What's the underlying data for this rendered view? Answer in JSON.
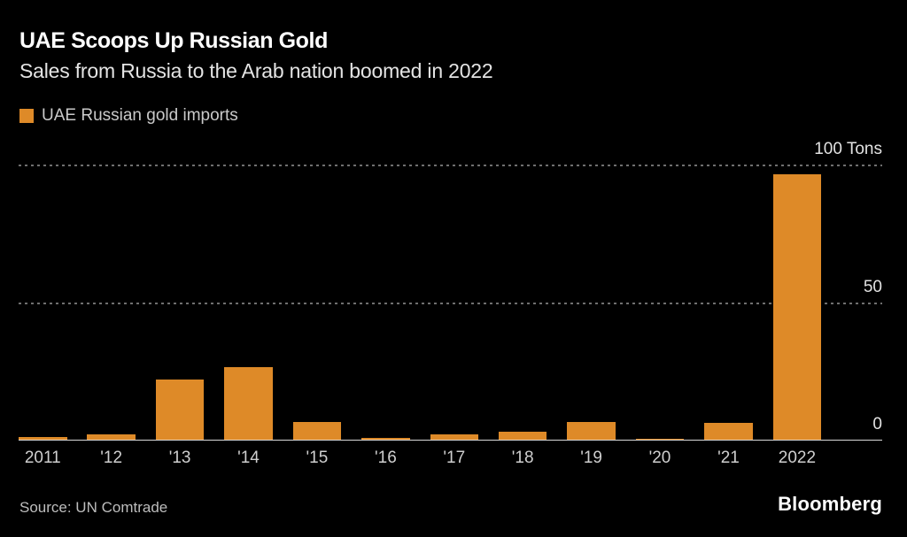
{
  "colors": {
    "background": "#000000",
    "bar": "#DE8A28",
    "title_text": "#FFFFFF",
    "subtitle_text": "#E4E4E4",
    "legend_text": "#C9C9C9",
    "axis_label_text": "#CFCFCF",
    "gridline": "#6F6F6F",
    "axis_line": "#D9D9D9",
    "source_text": "#BDBDBD",
    "brand_text": "#FFFFFF"
  },
  "header": {
    "title": "UAE Scoops Up Russian Gold",
    "subtitle": "Sales from Russia to the Arab nation boomed in 2022"
  },
  "legend": {
    "label": "UAE Russian gold imports",
    "swatch_color": "#DE8A28"
  },
  "chart_data": {
    "type": "bar",
    "title": "UAE Scoops Up Russian Gold",
    "subtitle": "Sales from Russia to the Arab nation boomed in 2022",
    "series_name": "UAE Russian gold imports",
    "categories": [
      "2011",
      "'12",
      "'13",
      "'14",
      "'15",
      "'16",
      "'17",
      "'18",
      "'19",
      "'20",
      "'21",
      "2022"
    ],
    "values": [
      1.1,
      2.0,
      21.8,
      26.4,
      6.5,
      0.7,
      1.9,
      2.9,
      6.3,
      0.3,
      6.0,
      96.4
    ],
    "unit": "Tons",
    "ylabel": "Tons",
    "ylim": [
      0,
      100
    ],
    "yticks": [
      {
        "value": 100,
        "label": "100 Tons"
      },
      {
        "value": 50,
        "label": "50"
      },
      {
        "value": 0,
        "label": "0"
      }
    ],
    "grid": "dotted horizontal gridlines at 50 and 100",
    "legend_position": "top-left",
    "bar_color": "#DE8A28"
  },
  "footer": {
    "source": "Source: UN Comtrade",
    "brand": "Bloomberg"
  }
}
